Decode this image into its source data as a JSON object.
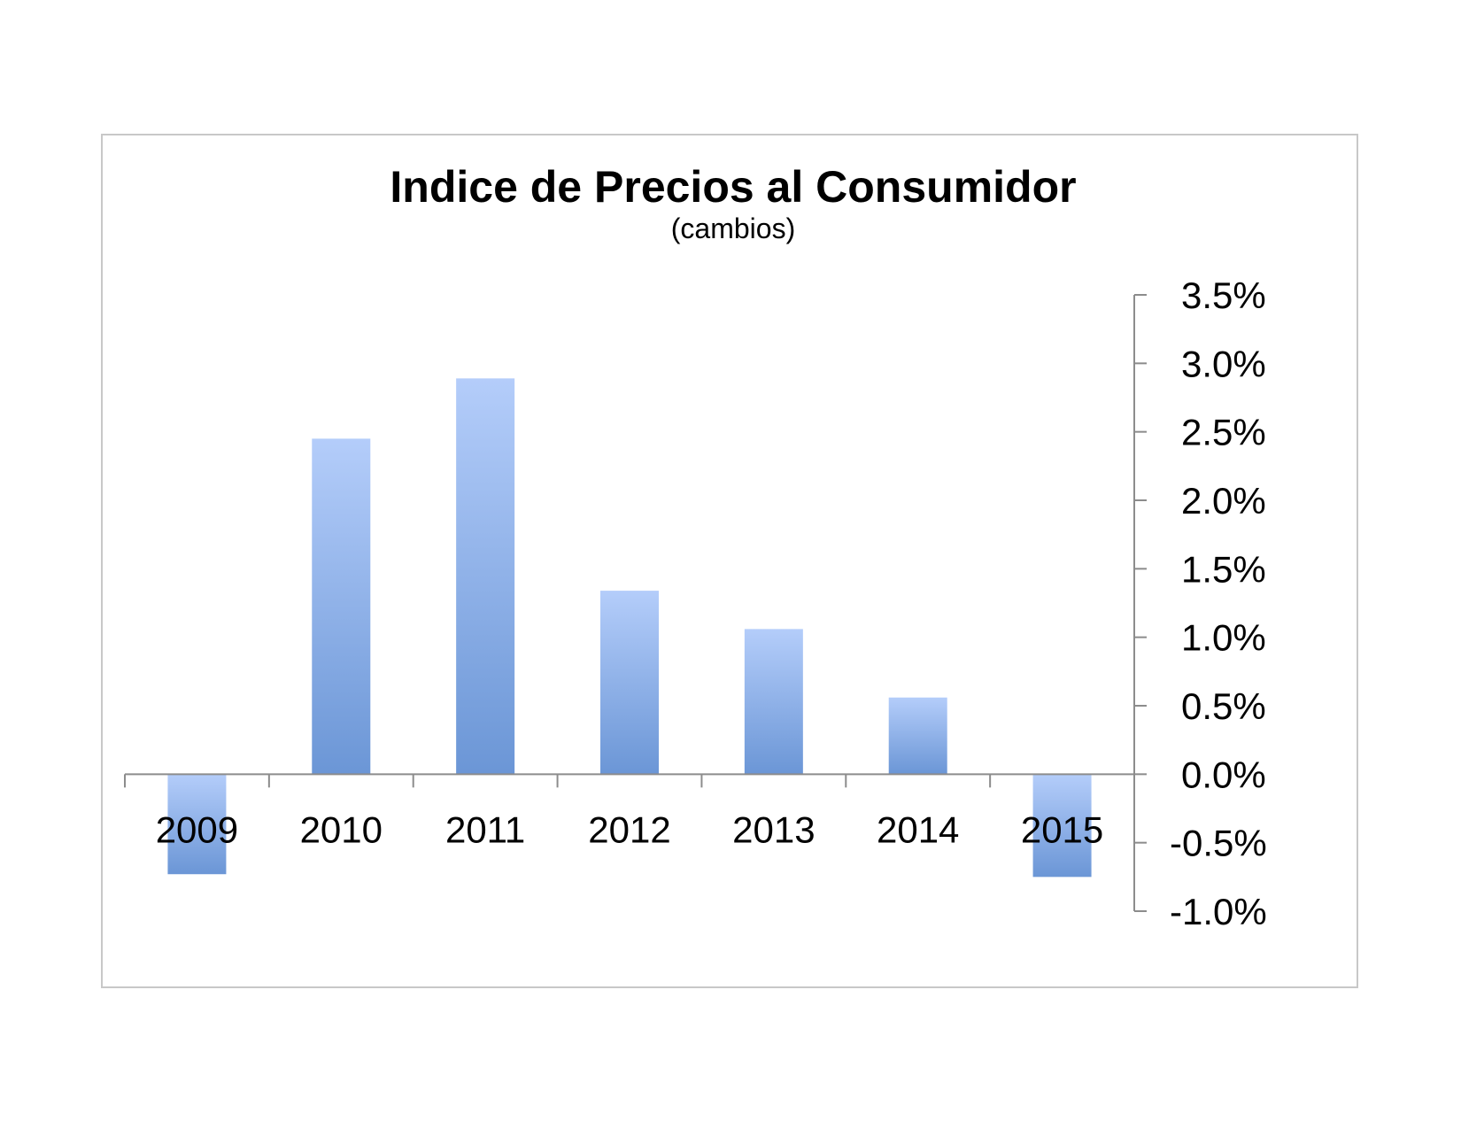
{
  "chart_data": {
    "type": "bar",
    "title": "Indice de Precios al Consumidor",
    "subtitle": "(cambios)",
    "xlabel": "",
    "ylabel": "",
    "categories": [
      "2009",
      "2010",
      "2011",
      "2012",
      "2013",
      "2014",
      "2015"
    ],
    "values": [
      -0.73,
      2.45,
      2.89,
      1.34,
      1.06,
      0.56,
      -0.75
    ],
    "ylim": [
      -1.0,
      3.5
    ],
    "yticks": [
      -1.0,
      -0.5,
      0.0,
      0.5,
      1.0,
      1.5,
      2.0,
      2.5,
      3.0,
      3.5
    ],
    "ytick_labels": [
      "-1.0%",
      "-0.5%",
      "0.0%",
      "0.5%",
      "1.0%",
      "1.5%",
      "2.0%",
      "2.5%",
      "3.0%",
      "3.5%"
    ],
    "y_axis_position": "right",
    "grid": false,
    "legend": "none",
    "bar_color_top": "#b4cdfa",
    "bar_color_bottom": "#6b96d6"
  }
}
